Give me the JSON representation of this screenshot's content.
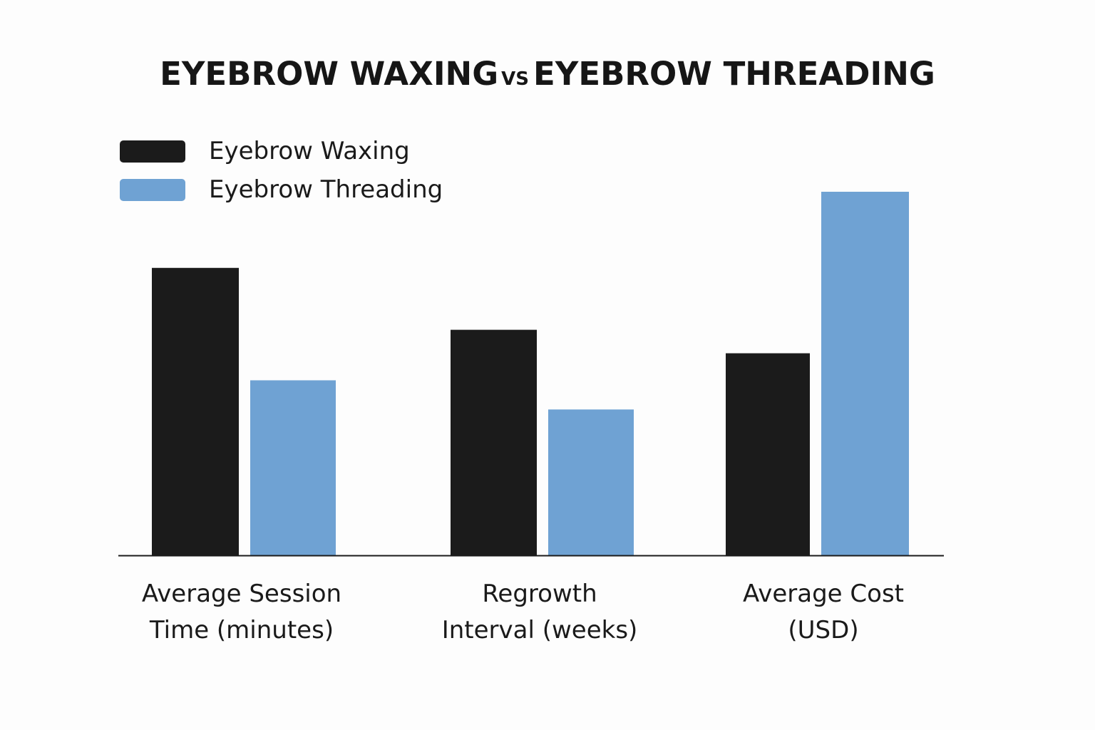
{
  "title": {
    "left": "EYEBROW WAXING",
    "vs": "VS",
    "right": "EYEBROW THREADING"
  },
  "colors": {
    "waxing": "#1b1b1b",
    "threading": "#6fa2d3",
    "axis": "#1b1b1b"
  },
  "chart_data": {
    "type": "bar",
    "title": "EYEBROW WAXING VS EYEBROW THREADING",
    "categories": [
      [
        "Average Session",
        "Time (minutes)"
      ],
      [
        "Regrowth",
        "Interval (weeks)"
      ],
      [
        "Average Cost",
        "(USD)"
      ]
    ],
    "series": [
      {
        "name": "Eyebrow Waxing",
        "values": [
          404,
          317,
          284
        ]
      },
      {
        "name": "Eyebrow Threading",
        "values": [
          246,
          205,
          511
        ]
      }
    ],
    "series_colors": [
      "black",
      "blue"
    ],
    "ylim": [
      0,
      520
    ],
    "grid": false,
    "legend": "top-left",
    "xlabel": "",
    "ylabel": ""
  }
}
